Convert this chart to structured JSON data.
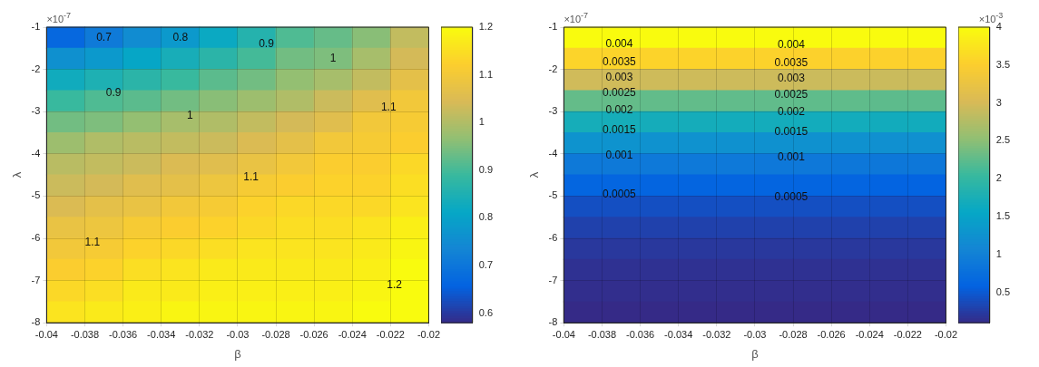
{
  "chart_data": [
    {
      "type": "scatter",
      "marker": "square",
      "xlabel": "β",
      "ylabel": "λ",
      "xlim": [
        -0.04,
        -0.02
      ],
      "xticks": [
        -0.04,
        -0.038,
        -0.036,
        -0.034,
        -0.032,
        -0.03,
        -0.028,
        -0.026,
        -0.024,
        -0.022,
        -0.02
      ],
      "ylim": [
        -8,
        -1
      ],
      "yticks": [
        -8,
        -7,
        -6,
        -5,
        -4,
        -3,
        -2,
        -1
      ],
      "grid": true,
      "clim": [
        0.58,
        1.2
      ],
      "cticks": [
        0.6,
        0.7,
        0.8,
        0.9,
        1,
        1.1,
        1.2
      ],
      "x": [
        -0.039,
        -0.037,
        -0.035,
        -0.033,
        -0.031,
        -0.029,
        -0.027,
        -0.025,
        -0.023,
        -0.021,
        -0.039,
        -0.037,
        -0.035,
        -0.033,
        -0.031,
        -0.029,
        -0.027,
        -0.025,
        -0.023,
        -0.021,
        -0.039,
        -0.037,
        -0.035,
        -0.033,
        -0.031,
        -0.029,
        -0.027,
        -0.025,
        -0.023,
        -0.021,
        -0.039,
        -0.037,
        -0.035,
        -0.033,
        -0.031,
        -0.029,
        -0.027,
        -0.025,
        -0.023,
        -0.021,
        -0.039,
        -0.037,
        -0.035,
        -0.033,
        -0.031,
        -0.029,
        -0.027,
        -0.025,
        -0.023,
        -0.021,
        -0.039,
        -0.037,
        -0.035,
        -0.033,
        -0.031,
        -0.029,
        -0.027,
        -0.025,
        -0.023,
        -0.021,
        -0.039,
        -0.037,
        -0.035,
        -0.033,
        -0.031,
        -0.029,
        -0.027,
        -0.025,
        -0.023,
        -0.021,
        -0.039,
        -0.037,
        -0.035,
        -0.033,
        -0.031,
        -0.029,
        -0.027,
        -0.025,
        -0.023,
        -0.021,
        -0.039,
        -0.037,
        -0.035,
        -0.033,
        -0.031,
        -0.029,
        -0.027,
        -0.025,
        -0.023,
        -0.021,
        -0.039,
        -0.037,
        -0.035,
        -0.033,
        -0.031,
        -0.029,
        -0.027,
        -0.025,
        -0.023,
        -0.021,
        -0.039,
        -0.037,
        -0.035,
        -0.033,
        -0.031,
        -0.029,
        -0.027,
        -0.025,
        -0.023,
        -0.021,
        -0.039,
        -0.037,
        -0.035,
        -0.033,
        -0.031,
        -0.029,
        -0.027,
        -0.025,
        -0.023,
        -0.021,
        -0.039,
        -0.037,
        -0.035,
        -0.033,
        -0.031,
        -0.029,
        -0.027,
        -0.025,
        -0.023,
        -0.021,
        -0.039,
        -0.037,
        -0.035,
        -0.033,
        -0.031,
        -0.029,
        -0.027,
        -0.025,
        -0.023,
        -0.021
      ],
      "values": [
        -1.25,
        -1.25,
        -1.25,
        -1.25,
        -1.25,
        -1.25,
        -1.25,
        -1.25,
        -1.25,
        -1.25,
        -1.75,
        -1.75,
        -1.75,
        -1.75,
        -1.75,
        -1.75,
        -1.75,
        -1.75,
        -1.75,
        -1.75,
        -2.25,
        -2.25,
        -2.25,
        -2.25,
        -2.25,
        -2.25,
        -2.25,
        -2.25,
        -2.25,
        -2.25,
        -2.75,
        -2.75,
        -2.75,
        -2.75,
        -2.75,
        -2.75,
        -2.75,
        -2.75,
        -2.75,
        -2.75,
        -3.25,
        -3.25,
        -3.25,
        -3.25,
        -3.25,
        -3.25,
        -3.25,
        -3.25,
        -3.25,
        -3.25,
        -3.75,
        -3.75,
        -3.75,
        -3.75,
        -3.75,
        -3.75,
        -3.75,
        -3.75,
        -3.75,
        -3.75,
        -4.25,
        -4.25,
        -4.25,
        -4.25,
        -4.25,
        -4.25,
        -4.25,
        -4.25,
        -4.25,
        -4.25,
        -4.75,
        -4.75,
        -4.75,
        -4.75,
        -4.75,
        -4.75,
        -4.75,
        -4.75,
        -4.75,
        -4.75,
        -5.25,
        -5.25,
        -5.25,
        -5.25,
        -5.25,
        -5.25,
        -5.25,
        -5.25,
        -5.25,
        -5.25,
        -5.75,
        -5.75,
        -5.75,
        -5.75,
        -5.75,
        -5.75,
        -5.75,
        -5.75,
        -5.75,
        -5.75,
        -6.25,
        -6.25,
        -6.25,
        -6.25,
        -6.25,
        -6.25,
        -6.25,
        -6.25,
        -6.25,
        -6.25,
        -6.75,
        -6.75,
        -6.75,
        -6.75,
        -6.75,
        -6.75,
        -6.75,
        -6.75,
        -6.75,
        -6.75,
        -7.25,
        -7.25,
        -7.25,
        -7.25,
        -7.25,
        -7.25,
        -7.25,
        -7.25,
        -7.25,
        -7.25,
        -7.75,
        -7.75,
        -7.75,
        -7.75,
        -7.75,
        -7.75,
        -7.75,
        -7.75,
        -7.75,
        -7.75
      ],
      "cvalues": [
        0.67,
        0.71,
        0.75,
        0.78,
        0.82,
        0.86,
        0.91,
        0.93,
        0.96,
        1.02,
        0.76,
        0.78,
        0.81,
        0.84,
        0.87,
        0.9,
        0.94,
        0.95,
        0.99,
        1.04,
        0.83,
        0.85,
        0.87,
        0.89,
        0.92,
        0.94,
        0.97,
        0.99,
        1.02,
        1.07,
        0.89,
        0.91,
        0.92,
        0.94,
        0.96,
        0.98,
        1.0,
        1.03,
        1.06,
        1.1,
        0.94,
        0.95,
        0.97,
        0.99,
        1.0,
        1.02,
        1.04,
        1.06,
        1.1,
        1.11,
        0.98,
        1.0,
        1.01,
        1.02,
        1.03,
        1.05,
        1.07,
        1.1,
        1.11,
        1.12,
        1.01,
        1.02,
        1.03,
        1.05,
        1.06,
        1.08,
        1.1,
        1.12,
        1.12,
        1.14,
        1.03,
        1.04,
        1.06,
        1.07,
        1.09,
        1.11,
        1.12,
        1.13,
        1.13,
        1.15,
        1.05,
        1.07,
        1.08,
        1.1,
        1.11,
        1.13,
        1.14,
        1.14,
        1.14,
        1.16,
        1.08,
        1.09,
        1.11,
        1.12,
        1.13,
        1.14,
        1.15,
        1.15,
        1.16,
        1.18,
        1.1,
        1.11,
        1.13,
        1.14,
        1.15,
        1.16,
        1.16,
        1.16,
        1.17,
        1.19,
        1.12,
        1.13,
        1.15,
        1.16,
        1.17,
        1.17,
        1.17,
        1.17,
        1.18,
        1.2,
        1.14,
        1.15,
        1.17,
        1.17,
        1.18,
        1.18,
        1.18,
        1.18,
        1.19,
        1.2,
        1.16,
        1.17,
        1.18,
        1.19,
        1.19,
        1.19,
        1.19,
        1.19,
        1.2,
        1.2
      ],
      "annotations": [
        "×10$^{-7}$",
        {
          "text": "0.7",
          "x": -0.037,
          "y": -1.25
        },
        {
          "text": "0.8",
          "x": -0.033,
          "y": -1.25
        },
        {
          "text": "0.9",
          "x": -0.0285,
          "y": -1.4
        },
        {
          "text": "1",
          "x": -0.025,
          "y": -1.75
        },
        {
          "text": "0.9",
          "x": -0.0365,
          "y": -2.55
        },
        {
          "text": "1",
          "x": -0.0325,
          "y": -3.1
        },
        {
          "text": "1.1",
          "x": -0.0221,
          "y": -2.9
        },
        {
          "text": "1.1",
          "x": -0.0293,
          "y": -4.55
        },
        {
          "text": "1.1",
          "x": -0.0376,
          "y": -6.1
        },
        {
          "text": "1.2",
          "x": -0.0218,
          "y": -7.1
        }
      ]
    },
    {
      "type": "scatter",
      "marker": "square",
      "xlabel": "β",
      "ylabel": "λ",
      "xlim": [
        -0.04,
        -0.02
      ],
      "xticks": [
        -0.04,
        -0.038,
        -0.036,
        -0.034,
        -0.032,
        -0.03,
        -0.028,
        -0.026,
        -0.024,
        -0.022,
        -0.02
      ],
      "ylim": [
        -8,
        -1
      ],
      "yticks": [
        -8,
        -7,
        -6,
        -5,
        -4,
        -3,
        -2,
        -1
      ],
      "grid": true,
      "clim": [
        0.1,
        4
      ],
      "cticks": [
        0.5,
        1,
        1.5,
        2,
        2.5,
        3,
        3.5,
        4
      ],
      "x": [
        -0.039,
        -0.037,
        -0.035,
        -0.033,
        -0.031,
        -0.029,
        -0.027,
        -0.025,
        -0.023,
        -0.021,
        -0.039,
        -0.037,
        -0.035,
        -0.033,
        -0.031,
        -0.029,
        -0.027,
        -0.025,
        -0.023,
        -0.021,
        -0.039,
        -0.037,
        -0.035,
        -0.033,
        -0.031,
        -0.029,
        -0.027,
        -0.025,
        -0.023,
        -0.021,
        -0.039,
        -0.037,
        -0.035,
        -0.033,
        -0.031,
        -0.029,
        -0.027,
        -0.025,
        -0.023,
        -0.021,
        -0.039,
        -0.037,
        -0.035,
        -0.033,
        -0.031,
        -0.029,
        -0.027,
        -0.025,
        -0.023,
        -0.021,
        -0.039,
        -0.037,
        -0.035,
        -0.033,
        -0.031,
        -0.029,
        -0.027,
        -0.025,
        -0.023,
        -0.021,
        -0.039,
        -0.037,
        -0.035,
        -0.033,
        -0.031,
        -0.029,
        -0.027,
        -0.025,
        -0.023,
        -0.021,
        -0.039,
        -0.037,
        -0.035,
        -0.033,
        -0.031,
        -0.029,
        -0.027,
        -0.025,
        -0.023,
        -0.021,
        -0.039,
        -0.037,
        -0.035,
        -0.033,
        -0.031,
        -0.029,
        -0.027,
        -0.025,
        -0.023,
        -0.021,
        -0.039,
        -0.037,
        -0.035,
        -0.033,
        -0.031,
        -0.029,
        -0.027,
        -0.025,
        -0.023,
        -0.021,
        -0.039,
        -0.037,
        -0.035,
        -0.033,
        -0.031,
        -0.029,
        -0.027,
        -0.025,
        -0.023,
        -0.021,
        -0.039,
        -0.037,
        -0.035,
        -0.033,
        -0.031,
        -0.029,
        -0.027,
        -0.025,
        -0.023,
        -0.021,
        -0.039,
        -0.037,
        -0.035,
        -0.033,
        -0.031,
        -0.029,
        -0.027,
        -0.025,
        -0.023,
        -0.021,
        -0.039,
        -0.037,
        -0.035,
        -0.033,
        -0.031,
        -0.029,
        -0.027,
        -0.025,
        -0.023,
        -0.021
      ],
      "values": [
        -1.25,
        -1.25,
        -1.25,
        -1.25,
        -1.25,
        -1.25,
        -1.25,
        -1.25,
        -1.25,
        -1.25,
        -1.75,
        -1.75,
        -1.75,
        -1.75,
        -1.75,
        -1.75,
        -1.75,
        -1.75,
        -1.75,
        -1.75,
        -2.25,
        -2.25,
        -2.25,
        -2.25,
        -2.25,
        -2.25,
        -2.25,
        -2.25,
        -2.25,
        -2.25,
        -2.75,
        -2.75,
        -2.75,
        -2.75,
        -2.75,
        -2.75,
        -2.75,
        -2.75,
        -2.75,
        -2.75,
        -3.25,
        -3.25,
        -3.25,
        -3.25,
        -3.25,
        -3.25,
        -3.25,
        -3.25,
        -3.25,
        -3.25,
        -3.75,
        -3.75,
        -3.75,
        -3.75,
        -3.75,
        -3.75,
        -3.75,
        -3.75,
        -3.75,
        -3.75,
        -4.25,
        -4.25,
        -4.25,
        -4.25,
        -4.25,
        -4.25,
        -4.25,
        -4.25,
        -4.25,
        -4.25,
        -4.75,
        -4.75,
        -4.75,
        -4.75,
        -4.75,
        -4.75,
        -4.75,
        -4.75,
        -4.75,
        -4.75,
        -5.25,
        -5.25,
        -5.25,
        -5.25,
        -5.25,
        -5.25,
        -5.25,
        -5.25,
        -5.25,
        -5.25,
        -5.75,
        -5.75,
        -5.75,
        -5.75,
        -5.75,
        -5.75,
        -5.75,
        -5.75,
        -5.75,
        -5.75,
        -6.25,
        -6.25,
        -6.25,
        -6.25,
        -6.25,
        -6.25,
        -6.25,
        -6.25,
        -6.25,
        -6.25,
        -6.75,
        -6.75,
        -6.75,
        -6.75,
        -6.75,
        -6.75,
        -6.75,
        -6.75,
        -6.75,
        -6.75,
        -7.25,
        -7.25,
        -7.25,
        -7.25,
        -7.25,
        -7.25,
        -7.25,
        -7.25,
        -7.25,
        -7.25,
        -7.75,
        -7.75,
        -7.75,
        -7.75,
        -7.75,
        -7.75,
        -7.75,
        -7.75,
        -7.75,
        -7.75
      ],
      "cvalues": [
        4,
        4,
        4,
        4,
        4,
        4,
        4,
        4,
        4,
        4,
        3.58,
        3.58,
        3.57,
        3.57,
        3.56,
        3.56,
        3.55,
        3.55,
        3.54,
        3.54,
        2.96,
        2.96,
        2.95,
        2.95,
        2.94,
        2.94,
        2.93,
        2.93,
        2.92,
        2.92,
        2.29,
        2.29,
        2.28,
        2.28,
        2.27,
        2.27,
        2.26,
        2.26,
        2.25,
        2.25,
        1.72,
        1.72,
        1.71,
        1.71,
        1.7,
        1.7,
        1.69,
        1.69,
        1.68,
        1.68,
        1.27,
        1.27,
        1.26,
        1.26,
        1.25,
        1.25,
        1.24,
        1.24,
        1.23,
        1.23,
        0.91,
        0.91,
        0.9,
        0.9,
        0.9,
        0.89,
        0.89,
        0.88,
        0.88,
        0.88,
        0.63,
        0.63,
        0.62,
        0.62,
        0.62,
        0.61,
        0.61,
        0.61,
        0.6,
        0.6,
        0.42,
        0.42,
        0.42,
        0.42,
        0.42,
        0.42,
        0.42,
        0.42,
        0.42,
        0.42,
        0.3,
        0.3,
        0.3,
        0.3,
        0.3,
        0.3,
        0.3,
        0.3,
        0.3,
        0.3,
        0.22,
        0.22,
        0.22,
        0.22,
        0.22,
        0.22,
        0.22,
        0.22,
        0.22,
        0.22,
        0.16,
        0.16,
        0.16,
        0.16,
        0.16,
        0.16,
        0.16,
        0.16,
        0.16,
        0.16,
        0.13,
        0.13,
        0.13,
        0.13,
        0.13,
        0.13,
        0.13,
        0.13,
        0.13,
        0.13,
        0.1,
        0.1,
        0.1,
        0.1,
        0.1,
        0.1,
        0.1,
        0.1,
        0.1,
        0.1
      ],
      "annotations": [
        "×10$^{-7}$",
        "×10$^{-3}$",
        {
          "text": "0.004",
          "x": -0.0371,
          "y": -1.4
        },
        {
          "text": "0.004",
          "x": -0.0281,
          "y": -1.42
        },
        {
          "text": "0.0035",
          "x": -0.0371,
          "y": -1.82
        },
        {
          "text": "0.0035",
          "x": -0.0281,
          "y": -1.85
        },
        {
          "text": "0.003",
          "x": -0.0371,
          "y": -2.2
        },
        {
          "text": "0.003",
          "x": -0.0281,
          "y": -2.22
        },
        {
          "text": "0.0025",
          "x": -0.0371,
          "y": -2.57
        },
        {
          "text": "0.0025",
          "x": -0.0281,
          "y": -2.6
        },
        {
          "text": "0.002",
          "x": -0.0371,
          "y": -2.97
        },
        {
          "text": "0.002",
          "x": -0.0281,
          "y": -3.0
        },
        {
          "text": "0.0015",
          "x": -0.0371,
          "y": -3.45
        },
        {
          "text": "0.0015",
          "x": -0.0281,
          "y": -3.48
        },
        {
          "text": "0.001",
          "x": -0.0371,
          "y": -4.05
        },
        {
          "text": "0.001",
          "x": -0.0281,
          "y": -4.08
        },
        {
          "text": "0.0005",
          "x": -0.0371,
          "y": -4.97
        },
        {
          "text": "0.0005",
          "x": -0.0281,
          "y": -5.03
        }
      ]
    }
  ]
}
